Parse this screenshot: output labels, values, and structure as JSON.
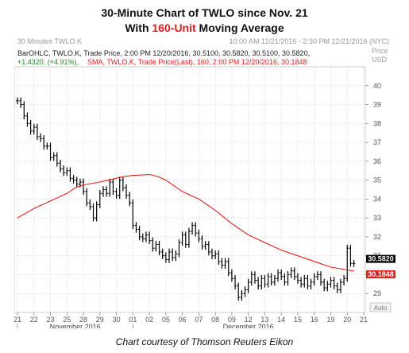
{
  "title": {
    "line1": "30-Minute Chart of TWLO since Nov. 21",
    "line2_prefix": "With ",
    "line2_highlight": "160-Unit",
    "line2_suffix": " Moving Average"
  },
  "credit": "Chart courtesy of Thomson Reuters Eikon",
  "colors": {
    "price_bars": "#000000",
    "sma": "#e0201a",
    "label_box": "#000000",
    "sma_box": "#e0201a",
    "grid": "#d8d8d8",
    "header_text": "#999999"
  },
  "chart_data": {
    "type": "line",
    "header_left": "30 Minutes TWLO.K",
    "header_right": "10:00 AM 11/21/2016 - 2:30 PM 12/21/2016 (NYC)",
    "legend_line1": "BarOHLC, TWLO.K, Trade Price, 2:00 PM 12/20/2016, 30.5100, 30.5820, 30.5100, 30.5820,",
    "legend_line2_green": "+1.4320, (+4.91%),",
    "legend_line2_red": "SMA, TWLO.K, Trade Price(Last), 160, 2:00 PM 12/20/2016, 30.1848",
    "y_axis_header": [
      "Price",
      "USD"
    ],
    "ylim": [
      28,
      41
    ],
    "y_ticks": [
      29,
      30,
      31,
      32,
      33,
      34,
      35,
      36,
      37,
      38,
      39,
      40
    ],
    "y_tick_labels": [
      "29",
      "30",
      "31",
      "32",
      "33",
      "34",
      "35",
      "36",
      "37",
      "38",
      "39",
      "40"
    ],
    "x_tick_labels": [
      "21",
      "22",
      "23",
      "25",
      "28",
      "29",
      "30",
      "01",
      "02",
      "05",
      "06",
      "07",
      "08",
      "09",
      "12",
      "13",
      "14",
      "15",
      "16",
      "19",
      "20",
      "21"
    ],
    "x_month_labels": [
      {
        "label": "November 2016",
        "from": 0,
        "to": 7
      },
      {
        "label": "December 2016",
        "from": 7,
        "to": 21
      }
    ],
    "auto_label": "Auto",
    "last_price_label": "30.5820",
    "sma_label": "30.1848",
    "last_price": 30.582,
    "last_sma": 30.1848,
    "price_points": [
      [
        0.0,
        39.2
      ],
      [
        0.2,
        39.0
      ],
      [
        0.4,
        38.4
      ],
      [
        0.6,
        38.0
      ],
      [
        0.8,
        37.6
      ],
      [
        1.0,
        37.8
      ],
      [
        1.2,
        37.3
      ],
      [
        1.4,
        37.2
      ],
      [
        1.6,
        36.8
      ],
      [
        1.8,
        36.8
      ],
      [
        2.0,
        36.2
      ],
      [
        2.2,
        36.3
      ],
      [
        2.4,
        35.9
      ],
      [
        2.6,
        35.6
      ],
      [
        2.8,
        35.4
      ],
      [
        3.0,
        35.5
      ],
      [
        3.2,
        35.1
      ],
      [
        3.4,
        35.0
      ],
      [
        3.6,
        34.8
      ],
      [
        3.8,
        34.9
      ],
      [
        4.0,
        34.4
      ],
      [
        4.2,
        33.8
      ],
      [
        4.4,
        33.6
      ],
      [
        4.6,
        33.0
      ],
      [
        4.8,
        33.7
      ],
      [
        5.0,
        34.3
      ],
      [
        5.2,
        34.5
      ],
      [
        5.4,
        34.3
      ],
      [
        5.6,
        34.9
      ],
      [
        5.8,
        34.4
      ],
      [
        6.0,
        34.2
      ],
      [
        6.2,
        35.0
      ],
      [
        6.4,
        34.6
      ],
      [
        6.6,
        34.2
      ],
      [
        6.8,
        33.8
      ],
      [
        7.0,
        32.6
      ],
      [
        7.2,
        32.4
      ],
      [
        7.4,
        32.0
      ],
      [
        7.6,
        31.9
      ],
      [
        7.8,
        32.1
      ],
      [
        8.0,
        31.8
      ],
      [
        8.2,
        31.4
      ],
      [
        8.4,
        31.6
      ],
      [
        8.6,
        31.2
      ],
      [
        8.8,
        31.0
      ],
      [
        9.0,
        30.8
      ],
      [
        9.2,
        31.2
      ],
      [
        9.4,
        30.9
      ],
      [
        9.6,
        31.1
      ],
      [
        9.8,
        31.7
      ],
      [
        10.0,
        32.1
      ],
      [
        10.2,
        31.6
      ],
      [
        10.4,
        32.3
      ],
      [
        10.6,
        32.6
      ],
      [
        10.8,
        32.2
      ],
      [
        11.0,
        31.9
      ],
      [
        11.2,
        31.5
      ],
      [
        11.4,
        31.6
      ],
      [
        11.6,
        31.2
      ],
      [
        11.8,
        31.0
      ],
      [
        12.0,
        31.1
      ],
      [
        12.2,
        30.7
      ],
      [
        12.4,
        30.5
      ],
      [
        12.6,
        30.7
      ],
      [
        12.8,
        30.1
      ],
      [
        13.0,
        29.8
      ],
      [
        13.2,
        29.4
      ],
      [
        13.4,
        28.8
      ],
      [
        13.6,
        29.0
      ],
      [
        13.8,
        29.2
      ],
      [
        14.0,
        29.6
      ],
      [
        14.2,
        30.0
      ],
      [
        14.4,
        29.7
      ],
      [
        14.6,
        29.4
      ],
      [
        14.8,
        29.8
      ],
      [
        15.0,
        29.5
      ],
      [
        15.2,
        29.9
      ],
      [
        15.4,
        29.6
      ],
      [
        15.6,
        29.8
      ],
      [
        15.8,
        30.1
      ],
      [
        16.0,
        29.9
      ],
      [
        16.2,
        29.6
      ],
      [
        16.4,
        30.0
      ],
      [
        16.6,
        30.2
      ],
      [
        16.8,
        29.9
      ],
      [
        17.0,
        29.7
      ],
      [
        17.2,
        29.5
      ],
      [
        17.4,
        29.8
      ],
      [
        17.6,
        29.4
      ],
      [
        17.8,
        29.6
      ],
      [
        18.0,
        29.9
      ],
      [
        18.2,
        30.0
      ],
      [
        18.4,
        29.6
      ],
      [
        18.6,
        29.3
      ],
      [
        18.8,
        29.5
      ],
      [
        19.0,
        29.7
      ],
      [
        19.2,
        29.4
      ],
      [
        19.4,
        29.2
      ],
      [
        19.6,
        29.6
      ],
      [
        19.8,
        29.8
      ],
      [
        20.0,
        31.4
      ],
      [
        20.2,
        30.6
      ],
      [
        20.4,
        30.582
      ]
    ],
    "sma_points": [
      [
        0.0,
        33.0
      ],
      [
        1.0,
        33.5
      ],
      [
        2.0,
        33.9
      ],
      [
        3.0,
        34.3
      ],
      [
        3.5,
        34.6
      ],
      [
        4.0,
        34.75
      ],
      [
        5.0,
        34.9
      ],
      [
        6.0,
        35.1
      ],
      [
        6.5,
        35.2
      ],
      [
        7.0,
        35.25
      ],
      [
        8.0,
        35.3
      ],
      [
        8.5,
        35.2
      ],
      [
        9.0,
        35.0
      ],
      [
        9.5,
        34.7
      ],
      [
        10.0,
        34.4
      ],
      [
        11.0,
        34.0
      ],
      [
        12.0,
        33.4
      ],
      [
        13.0,
        32.7
      ],
      [
        14.0,
        32.1
      ],
      [
        15.0,
        31.7
      ],
      [
        16.0,
        31.3
      ],
      [
        17.0,
        31.0
      ],
      [
        18.0,
        30.7
      ],
      [
        19.0,
        30.4
      ],
      [
        20.0,
        30.25
      ],
      [
        20.4,
        30.1848
      ]
    ]
  }
}
